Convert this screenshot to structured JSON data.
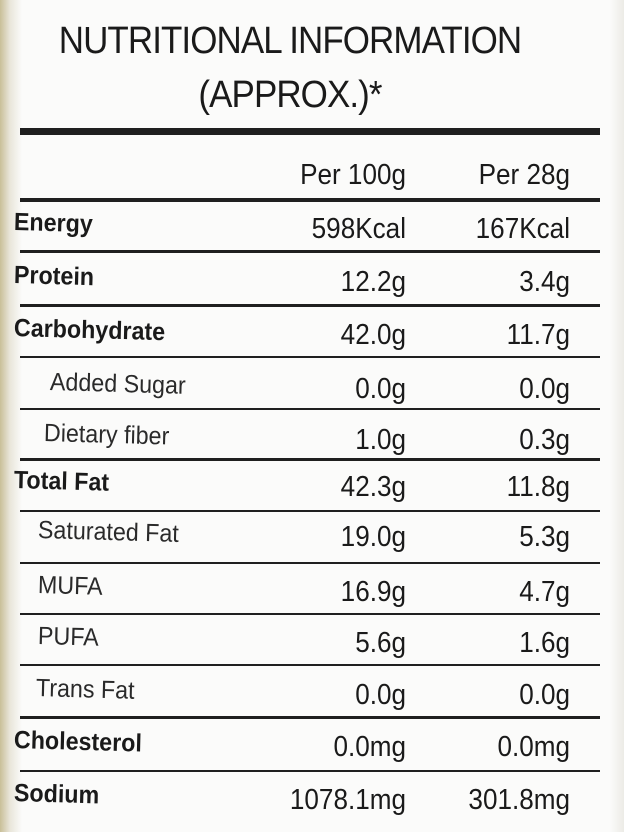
{
  "title": {
    "line1": "NUTRITIONAL INFORMATION",
    "line2": "(APPROX.)*"
  },
  "table": {
    "header": [
      "Per 100g",
      "Per 28g"
    ],
    "rows": [
      [
        "Energy",
        "598Kcal",
        "167Kcal"
      ],
      [
        "Protein",
        "12.2g",
        "3.4g"
      ],
      [
        "Carbohydrate",
        "42.0g",
        "11.7g"
      ],
      [
        "Added Sugar",
        "0.0g",
        "0.0g"
      ],
      [
        "Dietary fiber",
        "1.0g",
        "0.3g"
      ],
      [
        "Total Fat",
        "42.3g",
        "11.8g"
      ],
      [
        "Saturated Fat",
        "19.0g",
        "5.3g"
      ],
      [
        "MUFA",
        "16.9g",
        "4.7g"
      ],
      [
        "PUFA",
        "5.6g",
        "1.6g"
      ],
      [
        "Trans Fat",
        "0.0g",
        "0.0g"
      ],
      [
        "Cholesterol",
        "0.0mg",
        "0.0mg"
      ],
      [
        "Sodium",
        "1078.1mg",
        "301.8mg"
      ]
    ]
  }
}
